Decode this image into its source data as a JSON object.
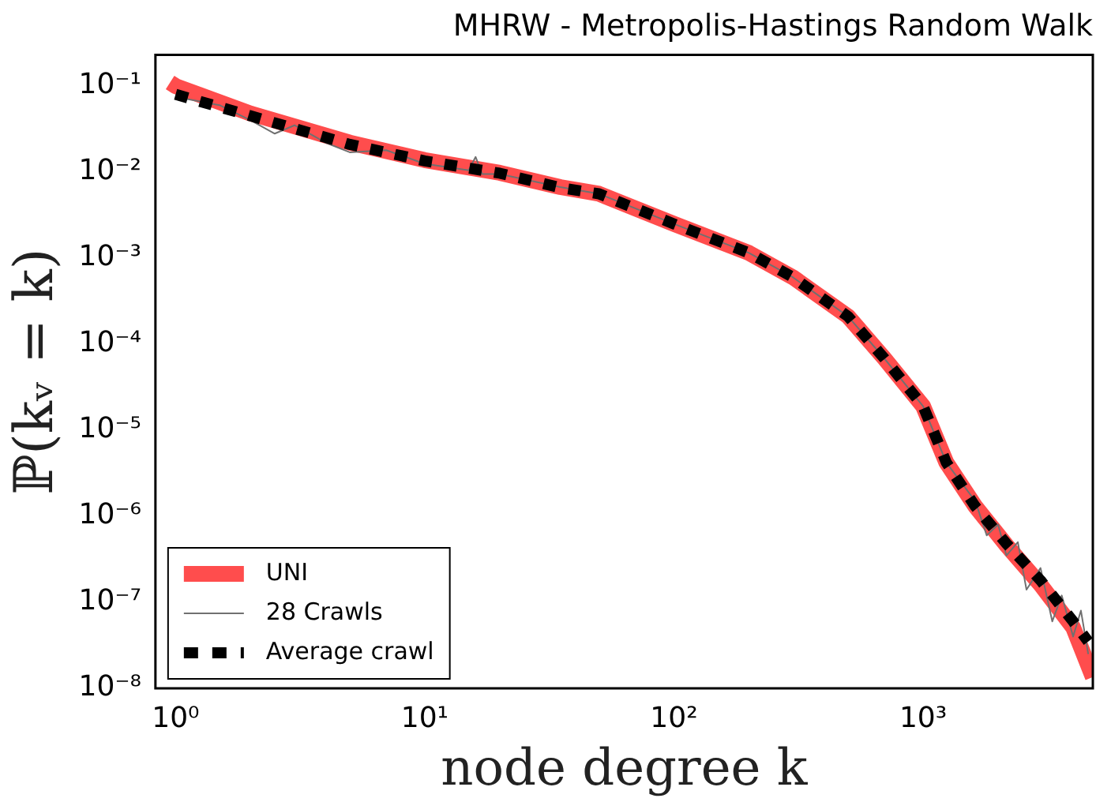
{
  "chart_data": {
    "type": "line",
    "title": "MHRW - Metropolis-Hastings Random Walk",
    "xlabel": "node degree k",
    "ylabel": "ℙ(kᵥ = k)",
    "log": "xy",
    "grid": false,
    "legend": "bottom left",
    "marker": "none",
    "xlim": [
      0.83,
      4800
    ],
    "xticks": [
      {
        "value": 1,
        "label": "10⁰"
      },
      {
        "value": 10,
        "label": "10¹"
      },
      {
        "value": 100,
        "label": "10²"
      },
      {
        "value": 1000,
        "label": "10³"
      }
    ],
    "ylim": [
      1e-08,
      0.23
    ],
    "yticks": [
      {
        "value": 1e-08,
        "label": "10⁻⁸"
      },
      {
        "value": 1e-07,
        "label": "10⁻⁷"
      },
      {
        "value": 1e-06,
        "label": "10⁻⁶"
      },
      {
        "value": 1e-05,
        "label": "10⁻⁵"
      },
      {
        "value": 0.0001,
        "label": "10⁻⁴"
      },
      {
        "value": 0.001,
        "label": "10⁻³"
      },
      {
        "value": 0.01,
        "label": "10⁻²"
      },
      {
        "value": 0.1,
        "label": "10⁻¹"
      }
    ],
    "series": [
      {
        "name": "UNI",
        "color": "#ff4d4d",
        "line_style": "solid",
        "x": [
          0.95,
          1,
          2,
          5,
          10,
          20,
          35,
          50,
          100,
          200,
          300,
          500,
          700,
          1000,
          1240,
          1620,
          2160,
          2960,
          4000,
          4800
        ],
        "values": [
          0.11,
          0.1,
          0.048,
          0.022,
          0.0138,
          0.0098,
          0.0067,
          0.0056,
          0.0025,
          0.00115,
          0.0006,
          0.00021,
          6.8e-05,
          1.9e-05,
          4.2e-06,
          1.3e-06,
          4.6e-07,
          1.6e-07,
          5.1e-08,
          1.35e-08
        ]
      },
      {
        "name": "28 Crawls",
        "color": "#707070",
        "line_style": "solid",
        "x": [
          1,
          1.5,
          2,
          2.5,
          3,
          4,
          5,
          7,
          10,
          15,
          16,
          17,
          20,
          35,
          50,
          100,
          200,
          300,
          500,
          700,
          1000,
          1240,
          1620,
          1800,
          2000,
          2160,
          2400,
          2600,
          2960,
          3300,
          3600,
          4000,
          4300,
          4600
        ],
        "values": [
          0.075,
          0.06,
          0.04,
          0.028,
          0.035,
          0.022,
          0.017,
          0.018,
          0.0125,
          0.0105,
          0.015,
          0.0095,
          0.0095,
          0.0067,
          0.0056,
          0.0025,
          0.00115,
          0.0006,
          0.00021,
          6.8e-05,
          1.9e-05,
          4.2e-06,
          1.5e-06,
          6e-07,
          8e-07,
          3.5e-07,
          5e-07,
          1.4e-07,
          2.5e-07,
          6e-08,
          1.2e-07,
          4e-08,
          8e-08,
          2.5e-08
        ]
      },
      {
        "name": "Average crawl",
        "color": "#000000",
        "line_style": "dashed",
        "x": [
          1,
          2,
          5,
          10,
          20,
          35,
          50,
          100,
          200,
          300,
          500,
          700,
          1000,
          1240,
          1620,
          2160,
          2960,
          4000,
          4600
        ],
        "values": [
          0.08,
          0.045,
          0.021,
          0.0135,
          0.0097,
          0.0066,
          0.0056,
          0.0025,
          0.00115,
          0.0006,
          0.00021,
          6.8e-05,
          1.9e-05,
          4.2e-06,
          1.3e-06,
          4.8e-07,
          1.8e-07,
          6e-08,
          3.5e-08
        ]
      }
    ]
  }
}
